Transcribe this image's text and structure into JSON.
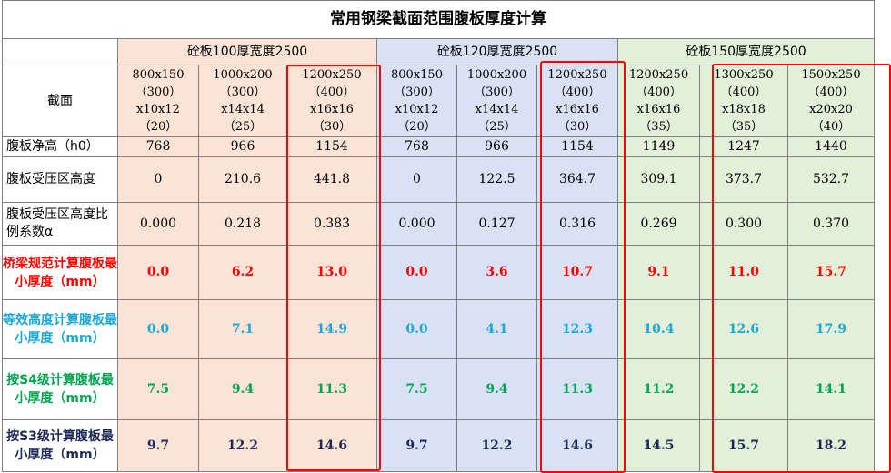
{
  "title": "常用钢梁截面范围腹板厚度计算",
  "groups": [
    "砼板100厚宽度2500",
    "砼板120厚宽度2500",
    "砼板150厚宽度2500"
  ],
  "row_labels": {
    "section": "截面",
    "h0": "腹板净高（h0）",
    "comp_height": "腹板受压区高度",
    "alpha": "腹板受压区高度比例系数α",
    "bridge": "桥梁规范计算腹板最小厚度（mm）",
    "equiv": "等效高度计算腹板最小厚度（mm）",
    "s4": "按S4级计算腹板最小厚度（mm）",
    "s3": "按S3级计算腹板最小厚度（mm）"
  },
  "sections": [
    [
      "800x150",
      "（300）",
      "x10x12",
      "（20）"
    ],
    [
      "1000x200",
      "（300）",
      "x14x14",
      "（25）"
    ],
    [
      "1200x250",
      "（400）",
      "x16x16",
      "（30）"
    ],
    [
      "800x150",
      "（300）",
      "x10x12",
      "（20）"
    ],
    [
      "1000x200",
      "（300）",
      "x14x14",
      "（25）"
    ],
    [
      "1200x250",
      "（400）",
      "x16x16",
      "（30）"
    ],
    [
      "1200x250",
      "（400）",
      "x16x16",
      "（35）"
    ],
    [
      "1300x250",
      "（400）",
      "x18x18",
      "（35）"
    ],
    [
      "1500x250",
      "（400）",
      "x20x20",
      "（40）"
    ]
  ],
  "h0": [
    "768",
    "966",
    "1154",
    "768",
    "966",
    "1154",
    "1149",
    "1247",
    "1440"
  ],
  "comp_height": [
    "0",
    "210.6",
    "441.8",
    "0",
    "122.5",
    "364.7",
    "309.1",
    "373.7",
    "532.7"
  ],
  "alpha": [
    "0.000",
    "0.218",
    "0.383",
    "0.000",
    "0.127",
    "0.316",
    "0.269",
    "0.300",
    "0.370"
  ],
  "bridge": [
    "0.0",
    "6.2",
    "13.0",
    "0.0",
    "3.6",
    "10.7",
    "9.1",
    "11.0",
    "15.7"
  ],
  "equiv": [
    "0.0",
    "7.1",
    "14.9",
    "0.0",
    "4.1",
    "12.3",
    "10.4",
    "12.6",
    "17.9"
  ],
  "s4": [
    "7.5",
    "9.4",
    "11.3",
    "7.5",
    "9.4",
    "11.3",
    "11.2",
    "12.2",
    "14.1"
  ],
  "s3": [
    "9.7",
    "12.2",
    "14.6",
    "9.7",
    "12.2",
    "14.6",
    "14.5",
    "15.7",
    "18.2"
  ],
  "colors": {
    "group1_bg": "#fbe4d5",
    "group2_bg": "#d9e1f4",
    "group3_bg": "#e2efd9",
    "bridge_text": "#ff0000",
    "equiv_text": "#1aa8d8",
    "s4_text": "#00a650",
    "s3_text": "#1f2a5a",
    "highlight": "#ff0000"
  }
}
